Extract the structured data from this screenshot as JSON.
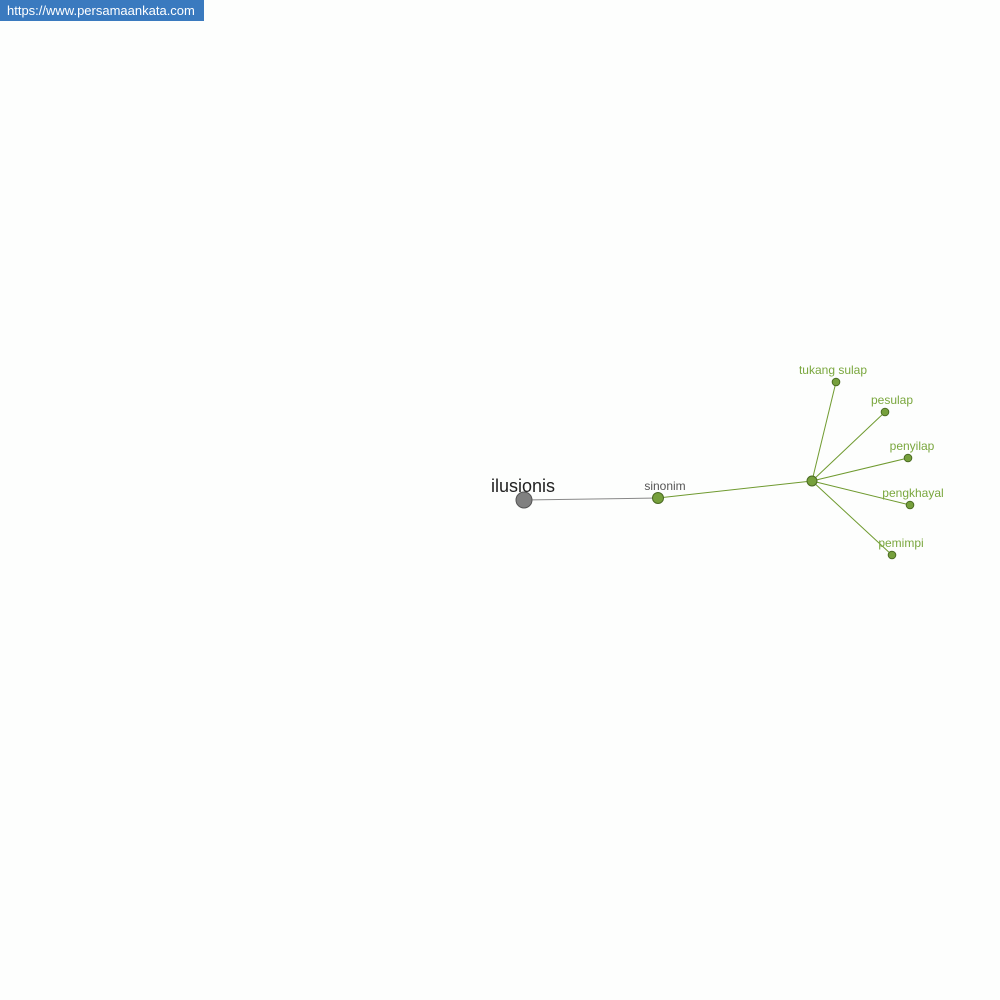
{
  "site_badge": "https://www.persamaankata.com",
  "colors": {
    "root_node": "#808080",
    "category_node": "#76a03c",
    "leaf_text": "#7aa73e",
    "edge": "#6f9a2f",
    "root_edge": "#888888",
    "badge": "#3a7abf"
  },
  "graph": {
    "root": {
      "label": "ilusionis"
    },
    "category": {
      "label": "sinonim"
    },
    "hub": {
      "label": ""
    },
    "leaves": [
      {
        "label": "tukang sulap"
      },
      {
        "label": "pesulap"
      },
      {
        "label": "penyilap"
      },
      {
        "label": "pengkhayal"
      },
      {
        "label": "pemimpi"
      }
    ]
  }
}
